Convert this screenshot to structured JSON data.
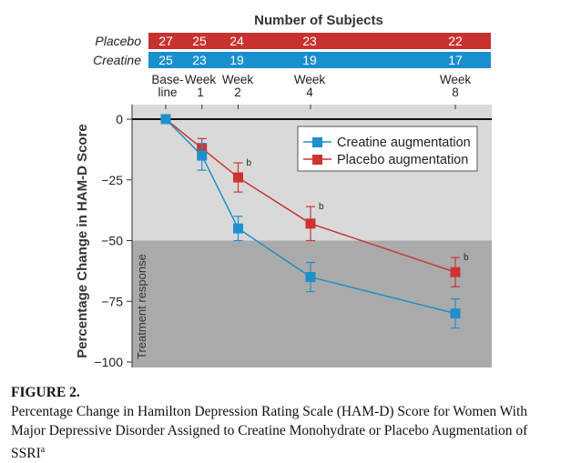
{
  "subjects_header": "Number of Subjects",
  "colors": {
    "placebo": "#cc3333",
    "creatine": "#1e90cc",
    "placebo_bar": "#c8312e",
    "creatine_bar": "#1a8fce",
    "plot_bg": "#d9d9d9",
    "response_band": "#aaaaaa"
  },
  "subject_counts": {
    "placebo": {
      "label": "Placebo",
      "counts": [
        "27",
        "25",
        "24",
        "23",
        "22"
      ]
    },
    "creatine": {
      "label": "Creatine",
      "counts": [
        "25",
        "23",
        "19",
        "19",
        "17"
      ]
    }
  },
  "week_labels": [
    {
      "line1": "Base-",
      "line2": "line"
    },
    {
      "line1": "Week",
      "line2": "1"
    },
    {
      "line1": "Week",
      "line2": "2"
    },
    {
      "line1": "Week",
      "line2": "4"
    },
    {
      "line1": "Week",
      "line2": "8"
    }
  ],
  "band_label": "Treatment response",
  "chart_data": {
    "type": "line",
    "title": "",
    "xlabel": "",
    "ylabel": "Percentage Change in HAM-D Score",
    "x": [
      0,
      1,
      2,
      4,
      8
    ],
    "ylim": [
      -100,
      0
    ],
    "yticks": [
      0,
      -25,
      -50,
      -75,
      -100
    ],
    "ytick_labels": [
      "0",
      "−25",
      "−50",
      "−75",
      "−100"
    ],
    "treatment_response_threshold": -50,
    "series": [
      {
        "name": "Creatine augmentation",
        "values": [
          0,
          -15,
          -45,
          -65,
          -80
        ],
        "err_low": [
          0,
          -21,
          -50,
          -71,
          -86
        ],
        "err_high": [
          0,
          -10,
          -40,
          -59,
          -74
        ]
      },
      {
        "name": "Placebo augmentation",
        "values": [
          0,
          -12,
          -24,
          -43,
          -63
        ],
        "err_low": [
          0,
          -16,
          -30,
          -50,
          -69
        ],
        "err_high": [
          0,
          -8,
          -18,
          -36,
          -57
        ]
      }
    ],
    "annotations": [
      {
        "text": "b",
        "x": 2,
        "y": -18
      },
      {
        "text": "b",
        "x": 4,
        "y": -36
      },
      {
        "text": "b",
        "x": 8,
        "y": -57
      }
    ],
    "legend": "top-right"
  },
  "caption": {
    "label": "FIGURE 2.",
    "text": "Percentage Change in Hamilton Depression Rating Scale (HAM-D) Score for Women With Major Depressive Disorder Assigned to Creatine Monohydrate or Placebo Augmentation of SSRI",
    "sup": "a"
  }
}
